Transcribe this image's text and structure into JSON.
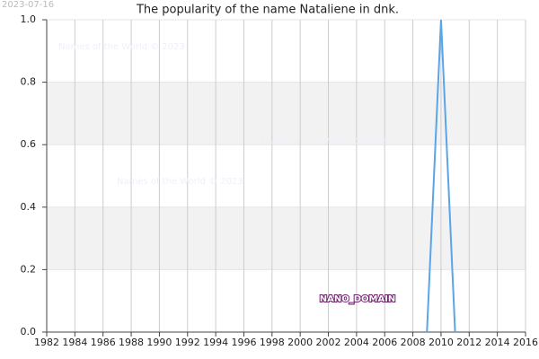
{
  "chart_data": {
    "type": "line",
    "title": "The popularity of the name Nataliene in dnk.",
    "date": "2023-07-16",
    "watermarks": [
      "Names of the World © 2023",
      "Names of the World © 2023",
      "Names of the World © 2023"
    ],
    "annotation": "NANO_DOMAIN",
    "x": [
      2009,
      2010,
      2011
    ],
    "series": [
      {
        "name": "Nataliene",
        "color": "#5aa5e8",
        "values": [
          0,
          1,
          0
        ]
      }
    ],
    "xlim": [
      1982,
      2016
    ],
    "xticks": [
      1982,
      1984,
      1986,
      1988,
      1990,
      1992,
      1994,
      1996,
      1998,
      2000,
      2002,
      2004,
      2006,
      2008,
      2010,
      2012,
      2014,
      2016
    ],
    "ylim": [
      0,
      1
    ],
    "yticks": [
      {
        "value": 0,
        "label": "0.0"
      },
      0.2,
      0.4,
      0.6,
      0.8,
      {
        "value": 1,
        "label": "1.0"
      }
    ],
    "grid": true,
    "band_color": "#f2f2f2"
  }
}
